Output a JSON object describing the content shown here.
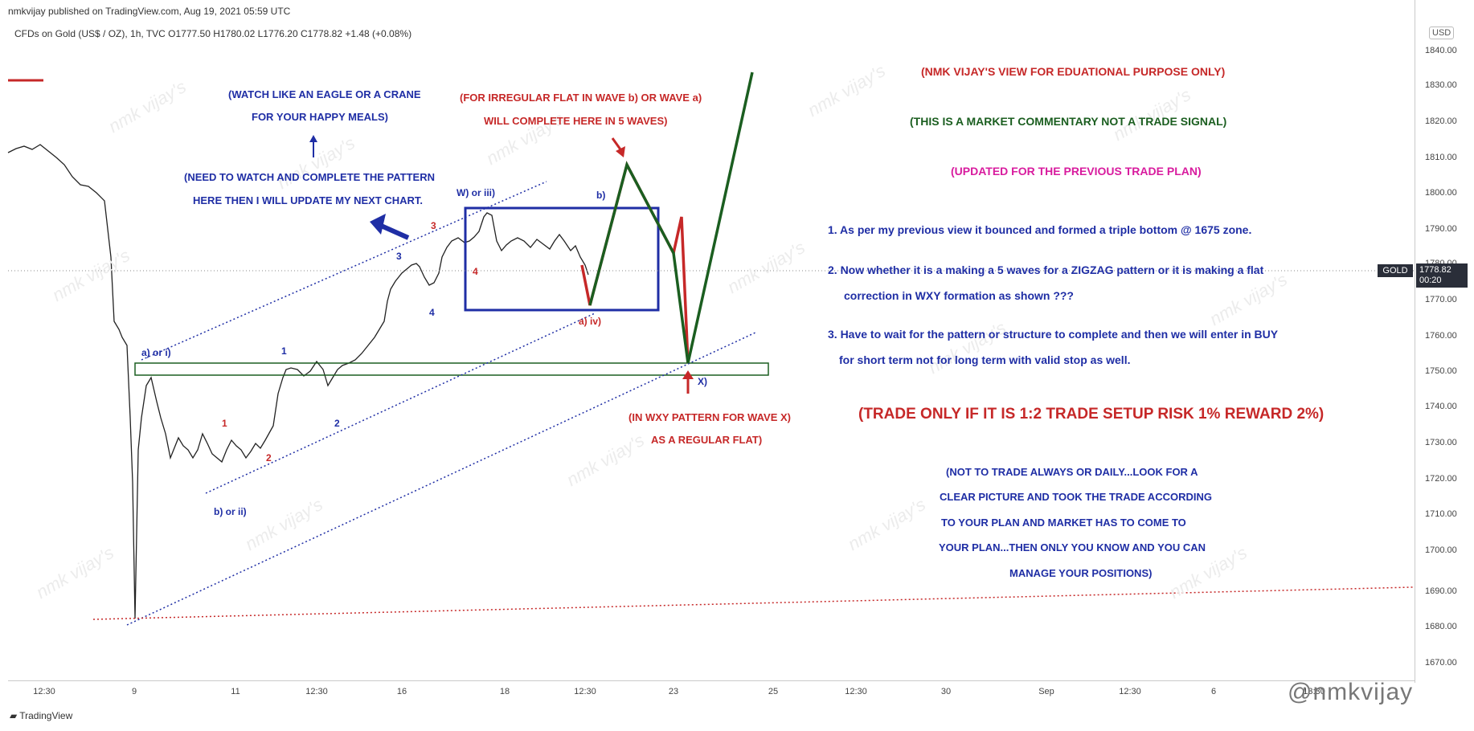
{
  "header": {
    "publisher": "nmkvijay published on TradingView.com, Aug 19, 2021 05:59 UTC",
    "symbol_line": "CFDs on Gold (US$ / OZ), 1h, TVC  O1777.50  H1780.02  L1776.20  C1778.82  +1.48 (+0.08%)"
  },
  "price_axis": {
    "currency": "USD",
    "ticks": [
      "1840.00",
      "1830.00",
      "1820.00",
      "1810.00",
      "1800.00",
      "1790.00",
      "1780.00",
      "1770.00",
      "1760.00",
      "1750.00",
      "1740.00",
      "1730.00",
      "1720.00",
      "1710.00",
      "1700.00",
      "1690.00",
      "1680.00",
      "1670.00"
    ],
    "symbol_tag": "GOLD",
    "current_price": "1778.82",
    "countdown": "00:20"
  },
  "time_axis": {
    "ticks": [
      "12:30",
      "9",
      "11",
      "12:30",
      "16",
      "18",
      "12:30",
      "23",
      "25",
      "12:30",
      "30",
      "Sep",
      "12:30",
      "6",
      "13:30"
    ]
  },
  "annotations": {
    "eagle_1": "(WATCH LIKE AN EAGLE OR A CRANE",
    "eagle_2": "FOR YOUR HAPPY MEALS)",
    "need_1": "(NEED TO WATCH AND COMPLETE THE PATTERN",
    "need_2": "HERE THEN I WILL UPDATE MY NEXT CHART.",
    "flat_1": "(FOR  IRREGULAR FLAT IN WAVE b) OR WAVE a)",
    "flat_2": "WILL COMPLETE HERE IN 5 WAVES)",
    "wxy_1": "(IN WXY PATTERN FOR WAVE X)",
    "wxy_2": "AS A REGULAR FLAT)",
    "view": "(NMK VIJAY'S VIEW FOR EDUATIONAL PURPOSE ONLY)",
    "commentary": "(THIS IS A MARKET COMMENTARY NOT A TRADE SIGNAL)",
    "updated": "(UPDATED FOR THE PREVIOUS TRADE PLAN)",
    "note1": "1. As per my previous view it bounced and formed a triple bottom @ 1675 zone.",
    "note2a": "2. Now whether it is a making a 5 waves for a ZIGZAG pattern or it is making a flat",
    "note2b": "correction in WXY formation as shown ???",
    "note3a": "3. Have to wait for the pattern or structure to complete and then we will enter in BUY",
    "note3b": "for short term not for long term with valid stop as well.",
    "trade": "(TRADE ONLY IF IT IS 1:2 TRADE SETUP RISK 1% REWARD 2%)",
    "not_1": "(NOT TO TRADE ALWAYS OR DAILY...LOOK FOR A",
    "not_2": "CLEAR PICTURE AND TOOK THE TRADE ACCORDING",
    "not_3": "TO YOUR PLAN AND MARKET HAS TO COME TO",
    "not_4": "YOUR PLAN...THEN ONLY YOU KNOW AND YOU CAN",
    "not_5": "MANAGE YOUR POSITIONS)"
  },
  "wave_labels": {
    "a_or_i": "a)  or i)",
    "b_or_ii": "b)  or ii)",
    "w_or_iii": "W) or iii)",
    "a_iv": "a) iv)",
    "b": "b)",
    "x": "X)",
    "one_red": "1",
    "two_red": "2",
    "one_blue": "1",
    "two_blue": "2",
    "three_blue": "3",
    "three_red": "3",
    "four_blue": "4",
    "four_red": "4"
  },
  "watermark": "nmk vijay's",
  "footer": {
    "logo": "TradingView",
    "handle": "@nmkvijay"
  }
}
